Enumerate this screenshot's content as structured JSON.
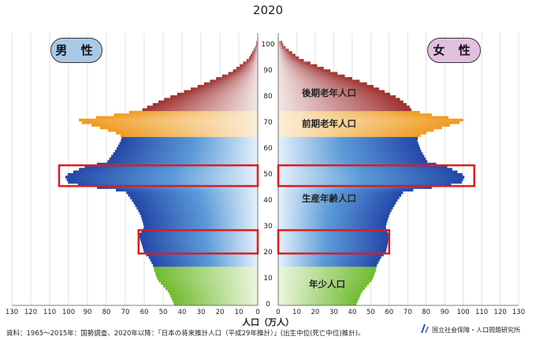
{
  "chart_data": {
    "type": "bar",
    "orientation": "population-pyramid",
    "title": "2020",
    "xlabel": "人口（万人）",
    "x_ticks_left": [
      "130",
      "120",
      "110",
      "100",
      "90",
      "80",
      "70",
      "60",
      "50",
      "40",
      "30",
      "20",
      "10",
      "0"
    ],
    "x_ticks_right": [
      "0",
      "10",
      "20",
      "30",
      "40",
      "50",
      "60",
      "70",
      "80",
      "90",
      "100",
      "110",
      "120",
      "130"
    ],
    "y_ticks": [
      "0",
      "10",
      "20",
      "30",
      "40",
      "50",
      "60",
      "70",
      "80",
      "90",
      "100"
    ],
    "xlim": [
      0,
      130
    ],
    "ylim": [
      0,
      105
    ],
    "grid": true,
    "sex_labels": {
      "male": "男 性",
      "female": "女 性"
    },
    "age_groups": [
      {
        "label": "後期老年人口",
        "from": 75,
        "to": 105,
        "color": "#a33c3c"
      },
      {
        "label": "前期老年人口",
        "from": 65,
        "to": 74,
        "color": "#f0a02a"
      },
      {
        "label": "生産年齢人口",
        "from": 15,
        "to": 64,
        "color": "#2f5fb8"
      },
      {
        "label": "年少人口",
        "from": 0,
        "to": 14,
        "color": "#7cc23a"
      }
    ],
    "series": [
      {
        "name": "男 性",
        "ages": [
          0,
          5,
          10,
          14,
          15,
          19,
          20,
          23,
          27,
          30,
          35,
          40,
          44,
          45,
          46,
          47,
          50,
          54,
          55,
          60,
          64,
          65,
          66,
          67,
          70,
          71,
          72,
          73,
          74,
          75,
          76,
          80,
          85,
          90,
          95,
          100,
          105
        ],
        "values": [
          44,
          47,
          53,
          55,
          55,
          58,
          60,
          61,
          63,
          60,
          62,
          66,
          70,
          80,
          90,
          100,
          102,
          90,
          80,
          75,
          72,
          72,
          73,
          77,
          90,
          96,
          93,
          78,
          74,
          62,
          60,
          48,
          30,
          14,
          5,
          1,
          0
        ]
      },
      {
        "name": "女 性",
        "ages": [
          0,
          5,
          10,
          14,
          15,
          19,
          20,
          23,
          27,
          30,
          35,
          40,
          44,
          45,
          46,
          47,
          50,
          54,
          55,
          60,
          64,
          65,
          66,
          67,
          70,
          71,
          72,
          73,
          74,
          75,
          76,
          80,
          85,
          90,
          95,
          100,
          105
        ],
        "values": [
          42,
          45,
          51,
          53,
          53,
          56,
          58,
          59,
          60,
          58,
          60,
          64,
          68,
          78,
          88,
          99,
          101,
          90,
          81,
          77,
          75,
          76,
          78,
          82,
          95,
          101,
          99,
          85,
          81,
          72,
          72,
          65,
          50,
          30,
          12,
          3,
          0
        ]
      }
    ],
    "highlight_ranges": [
      {
        "from": 46,
        "to": 54
      },
      {
        "from": 20,
        "to": 29
      }
    ]
  },
  "footer": {
    "source": "資料：1965～2015年：国勢調査、2020年以降：「日本の将来推計人口（平成29年推計）」(出生中位(死亡中位)推計)。",
    "organization": "国立社会保障・人口問題研究所"
  }
}
